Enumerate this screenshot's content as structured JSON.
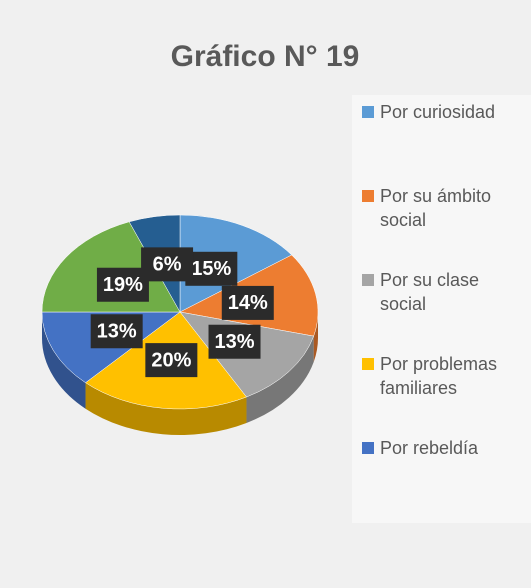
{
  "chart_data": {
    "type": "pie",
    "title": "Gráfico N° 19",
    "categories": [
      "Por curiosidad",
      "Por su ámbito social",
      "Por su clase social",
      "Por problemas familiares",
      "Por rebeldía",
      null,
      null
    ],
    "values": [
      15,
      14,
      13,
      20,
      13,
      19,
      6
    ],
    "value_labels": [
      "15%",
      "14%",
      "13%",
      "20%",
      "13%",
      "19%",
      "6%"
    ],
    "colors": [
      "#5b9bd5",
      "#ed7d31",
      "#a5a5a5",
      "#ffc000",
      "#4472c4",
      "#70ad47",
      "#255e91"
    ],
    "legend": "right"
  }
}
